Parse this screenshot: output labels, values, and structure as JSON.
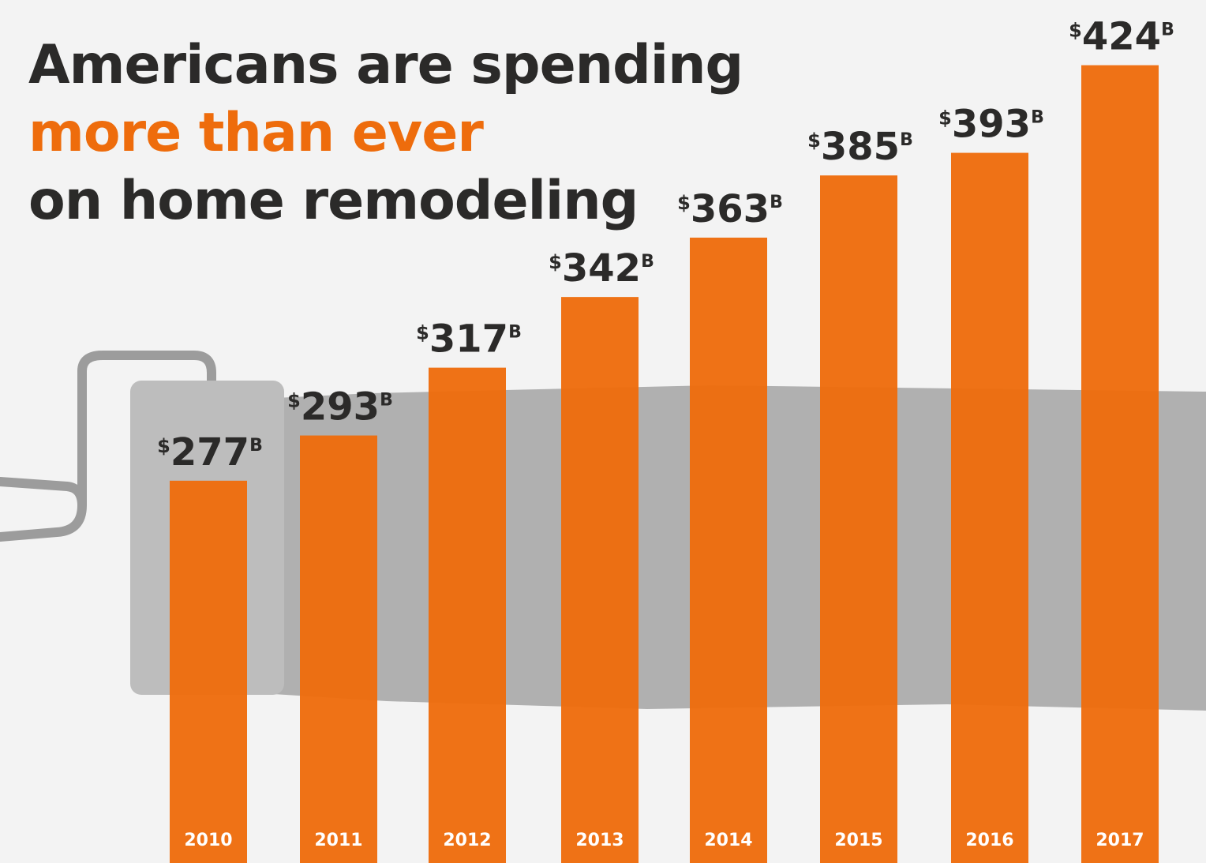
{
  "title": {
    "line1": "Americans are spending",
    "line2": "more than ever",
    "line3": "on home remodeling"
  },
  "colors": {
    "accent": "#ee6c0c",
    "text": "#2b2a29",
    "background": "#f3f3f3",
    "paint_stroke": "#a8a8a8"
  },
  "chart_data": {
    "type": "bar",
    "title": "Americans are spending more than ever on home remodeling",
    "categories": [
      "2010",
      "2011",
      "2012",
      "2013",
      "2014",
      "2015",
      "2016",
      "2017"
    ],
    "values": [
      277,
      293,
      317,
      342,
      363,
      385,
      393,
      424
    ],
    "value_prefix": "$",
    "value_suffix": "B",
    "labels": [
      "277",
      "293",
      "317",
      "342",
      "363",
      "385",
      "393",
      "424"
    ],
    "xlabel": "",
    "ylabel": "",
    "grid": false,
    "legend": "none"
  }
}
